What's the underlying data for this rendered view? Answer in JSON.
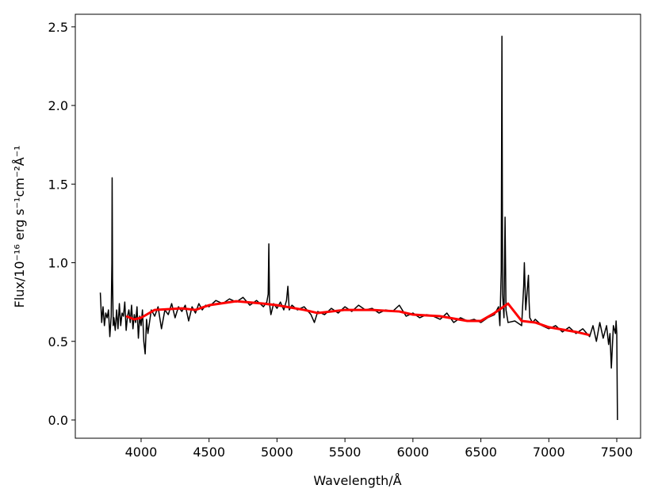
{
  "chart_data": {
    "type": "line",
    "xlabel": "Wavelength/Å",
    "ylabel": "Flux/10⁻¹⁶ erg s⁻¹cm⁻²Å⁻¹",
    "xlim": [
      3516,
      7675
    ],
    "ylim": [
      -0.116,
      2.58
    ],
    "xticks": [
      4000,
      4500,
      5000,
      5500,
      6000,
      6500,
      7000,
      7500
    ],
    "yticks": [
      {
        "value": 0,
        "label": "0.0"
      },
      0.5,
      {
        "value": 1,
        "label": "1.0"
      },
      1.5,
      {
        "value": 2,
        "label": "2.0"
      },
      2.5
    ],
    "series": [
      {
        "color": "#000000",
        "x": [
          3700,
          3710,
          3720,
          3730,
          3740,
          3750,
          3760,
          3770,
          3780,
          3785,
          3787,
          3790,
          3795,
          3800,
          3810,
          3820,
          3830,
          3840,
          3850,
          3860,
          3870,
          3880,
          3890,
          3900,
          3910,
          3920,
          3930,
          3940,
          3950,
          3960,
          3970,
          3980,
          3990,
          4000,
          4010,
          4020,
          4030,
          4040,
          4050,
          4075,
          4100,
          4125,
          4150,
          4175,
          4200,
          4225,
          4250,
          4275,
          4300,
          4325,
          4350,
          4375,
          4400,
          4425,
          4450,
          4475,
          4500,
          4550,
          4600,
          4650,
          4700,
          4750,
          4800,
          4850,
          4900,
          4925,
          4935,
          4940,
          4945,
          4955,
          4975,
          5000,
          5025,
          5050,
          5070,
          5080,
          5090,
          5110,
          5150,
          5200,
          5250,
          5275,
          5300,
          5350,
          5400,
          5450,
          5500,
          5550,
          5600,
          5650,
          5700,
          5750,
          5800,
          5850,
          5900,
          5950,
          6000,
          6050,
          6100,
          6150,
          6200,
          6250,
          6300,
          6350,
          6400,
          6450,
          6500,
          6550,
          6600,
          6630,
          6640,
          6650,
          6655,
          6660,
          6670,
          6678,
          6685,
          6700,
          6750,
          6800,
          6815,
          6820,
          6830,
          6850,
          6855,
          6860,
          6880,
          6900,
          6950,
          7000,
          7050,
          7100,
          7150,
          7200,
          7250,
          7300,
          7325,
          7350,
          7375,
          7400,
          7425,
          7440,
          7450,
          7460,
          7475,
          7490,
          7495,
          7500,
          7505
        ],
        "values": [
          0.81,
          0.62,
          0.72,
          0.6,
          0.68,
          0.65,
          0.7,
          0.53,
          0.66,
          1.0,
          1.54,
          0.9,
          0.6,
          0.65,
          0.57,
          0.7,
          0.58,
          0.74,
          0.6,
          0.68,
          0.66,
          0.75,
          0.57,
          0.66,
          0.7,
          0.62,
          0.73,
          0.58,
          0.67,
          0.62,
          0.72,
          0.52,
          0.66,
          0.6,
          0.7,
          0.5,
          0.42,
          0.64,
          0.55,
          0.7,
          0.66,
          0.72,
          0.58,
          0.7,
          0.67,
          0.74,
          0.65,
          0.72,
          0.69,
          0.73,
          0.63,
          0.72,
          0.68,
          0.74,
          0.7,
          0.73,
          0.72,
          0.76,
          0.74,
          0.77,
          0.75,
          0.78,
          0.73,
          0.76,
          0.72,
          0.75,
          0.8,
          1.12,
          0.74,
          0.67,
          0.74,
          0.71,
          0.75,
          0.7,
          0.76,
          0.85,
          0.7,
          0.73,
          0.7,
          0.72,
          0.67,
          0.62,
          0.69,
          0.67,
          0.71,
          0.68,
          0.72,
          0.69,
          0.73,
          0.7,
          0.71,
          0.68,
          0.7,
          0.69,
          0.73,
          0.66,
          0.68,
          0.65,
          0.67,
          0.66,
          0.64,
          0.68,
          0.62,
          0.65,
          0.63,
          0.64,
          0.62,
          0.65,
          0.67,
          0.72,
          0.6,
          0.95,
          2.44,
          0.8,
          0.65,
          1.29,
          0.7,
          0.62,
          0.63,
          0.6,
          0.85,
          1.0,
          0.7,
          0.92,
          0.75,
          0.65,
          0.62,
          0.64,
          0.6,
          0.58,
          0.6,
          0.56,
          0.59,
          0.55,
          0.58,
          0.53,
          0.6,
          0.5,
          0.62,
          0.52,
          0.6,
          0.48,
          0.55,
          0.33,
          0.6,
          0.55,
          0.63,
          0.55,
          0.0
        ]
      },
      {
        "color": "#ff0000",
        "x": [
          3890,
          3950,
          4000,
          4100,
          4300,
          4400,
          4500,
          4700,
          4900,
          5000,
          5200,
          5300,
          5500,
          5700,
          5900,
          6000,
          6200,
          6400,
          6500,
          6600,
          6700,
          6800,
          6900,
          7000,
          7200,
          7300
        ],
        "values": [
          0.66,
          0.64,
          0.65,
          0.7,
          0.71,
          0.7,
          0.73,
          0.755,
          0.74,
          0.73,
          0.7,
          0.68,
          0.7,
          0.7,
          0.69,
          0.67,
          0.66,
          0.63,
          0.63,
          0.68,
          0.74,
          0.63,
          0.62,
          0.59,
          0.56,
          0.54
        ]
      }
    ]
  }
}
